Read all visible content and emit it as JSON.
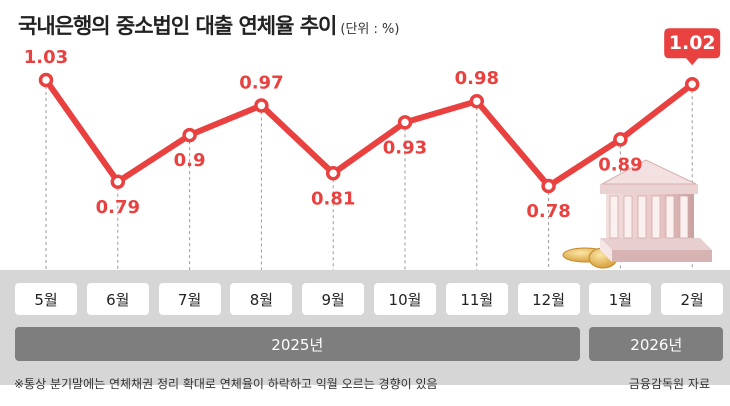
{
  "title": "국내은행의 중소법인 대출 연체율 추이",
  "unit": "(단위 : %)",
  "chart_data": {
    "type": "line",
    "categories": [
      "5월",
      "6월",
      "7월",
      "8월",
      "9월",
      "10월",
      "11월",
      "12월",
      "1월",
      "2월"
    ],
    "values": [
      1.03,
      0.79,
      0.9,
      0.97,
      0.81,
      0.93,
      0.98,
      0.78,
      0.89,
      1.02
    ],
    "value_labels": [
      "1.03",
      "0.79",
      "0.9",
      "0.97",
      "0.81",
      "0.93",
      "0.98",
      "0.78",
      "0.89",
      "1.02"
    ],
    "highlight_label": "1.02",
    "years": [
      {
        "label": "2025년",
        "months": 8
      },
      {
        "label": "2026년",
        "months": 2
      }
    ],
    "grid": false,
    "line_color": "#e8413f"
  },
  "footnote": "※통상 분기말에는 연체채권 정리 확대로 연체율이 하락하고 익월 오르는 경향이 있음",
  "source": "금융감독원 자료"
}
